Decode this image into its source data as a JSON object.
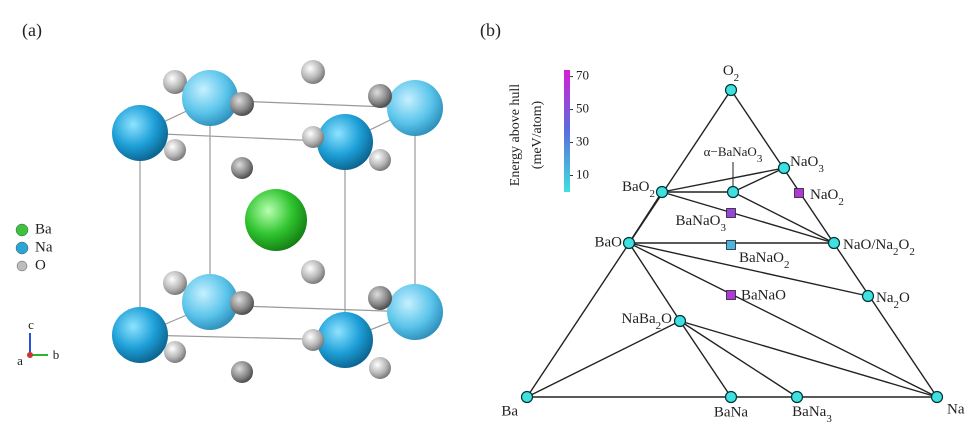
{
  "panel_a": {
    "label": "(a)",
    "legend": [
      {
        "name": "Ba",
        "color": "#3cc23c"
      },
      {
        "name": "Na",
        "color": "#2aa6d6"
      },
      {
        "name": "O",
        "color": "#bdbdbd"
      }
    ],
    "axes": [
      "a",
      "b",
      "c"
    ]
  },
  "panel_b": {
    "label": "(b)",
    "colorbar": {
      "title": "Energy above hull",
      "unit": "(meV/atom)",
      "lim": [
        0,
        74
      ],
      "ticks": [
        10,
        30,
        50,
        70
      ]
    },
    "phases": [
      {
        "label": "O2",
        "energy": 0
      },
      {
        "label": "BaO2",
        "energy": 0
      },
      {
        "label": "α−BaNaO3",
        "energy": 0
      },
      {
        "label": "NaO3",
        "energy": 0
      },
      {
        "label": "NaO2",
        "energy": 62
      },
      {
        "label": "BaNaO3",
        "energy": 55
      },
      {
        "label": "BaO",
        "energy": 0
      },
      {
        "label": "NaO/Na2O2",
        "energy": 0
      },
      {
        "label": "BaNaO2",
        "energy": 14
      },
      {
        "label": "BaNaO",
        "energy": 62
      },
      {
        "label": "Na2O",
        "energy": 0
      },
      {
        "label": "NaBa2O",
        "energy": 0
      },
      {
        "label": "Ba",
        "energy": 0
      },
      {
        "label": "BaNa",
        "energy": 0
      },
      {
        "label": "BaNa3",
        "energy": 0
      },
      {
        "label": "Na",
        "energy": 0
      }
    ]
  }
}
